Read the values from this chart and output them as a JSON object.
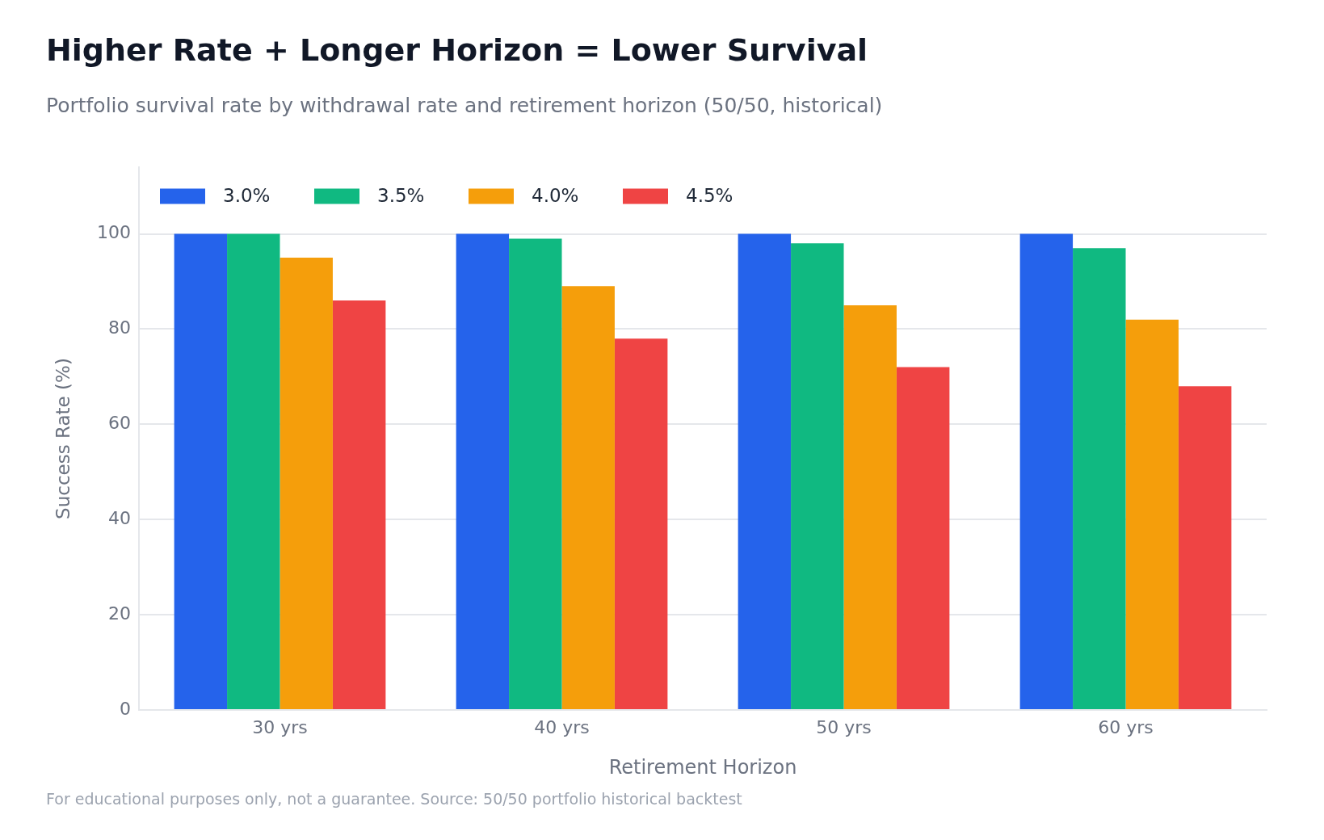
{
  "chart_data": {
    "type": "bar",
    "title": "Higher Rate + Longer Horizon = Lower Survival",
    "subtitle": "Portfolio survival rate by withdrawal rate and retirement horizon (50/50, historical)",
    "xlabel": "Retirement Horizon",
    "ylabel": "Success Rate (%)",
    "categories": [
      "30 yrs",
      "40 yrs",
      "50 yrs",
      "60 yrs"
    ],
    "series": [
      {
        "name": "3.0%",
        "color": "#2563eb",
        "values": [
          100,
          100,
          100,
          100
        ]
      },
      {
        "name": "3.5%",
        "color": "#10b981",
        "values": [
          100,
          99,
          98,
          97
        ]
      },
      {
        "name": "4.0%",
        "color": "#f59e0b",
        "values": [
          95,
          89,
          85,
          82
        ]
      },
      {
        "name": "4.5%",
        "color": "#ef4444",
        "values": [
          86,
          78,
          72,
          68
        ]
      }
    ],
    "ylim": [
      0,
      114
    ],
    "yticks": [
      0,
      20,
      40,
      60,
      80,
      100
    ],
    "grid": "y",
    "legend": "top left",
    "annotations": [
      "For educational purposes only, not a guarantee. Source: 50/50 portfolio historical backtest"
    ]
  }
}
